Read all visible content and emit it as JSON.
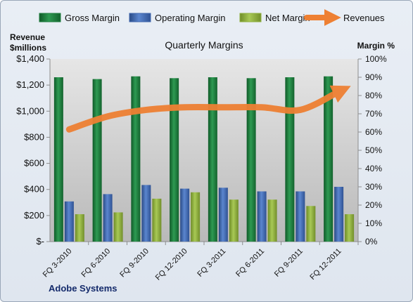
{
  "chart_data": {
    "type": "bar",
    "title": "Quarterly Margins",
    "company": "Adobe Systems",
    "left_axis_title": "Revenue $millions",
    "right_axis_title": "Margin %",
    "categories": [
      "FQ 3-2010",
      "FQ 6-2010",
      "FQ 9-2010",
      "FQ 12-2010",
      "FQ 3-2011",
      "FQ 6-2011",
      "FQ 9-2011",
      "FQ 12-2011"
    ],
    "series": [
      {
        "name": "Gross Margin",
        "axis": "right",
        "type": "bar",
        "color": "#1e7d3e",
        "values": [
          90,
          89,
          90.5,
          89.5,
          90,
          89.5,
          90,
          90.5
        ]
      },
      {
        "name": "Operating Margin",
        "axis": "right",
        "type": "bar",
        "color": "#3f66ad",
        "values": [
          22,
          26,
          31,
          29,
          29.5,
          27.5,
          27.5,
          30
        ]
      },
      {
        "name": "Net Margin",
        "axis": "right",
        "type": "bar",
        "color": "#8fb03e",
        "values": [
          15,
          16,
          23.5,
          27,
          23,
          23,
          19.5,
          15
        ]
      },
      {
        "name": "Revenues",
        "axis": "left",
        "type": "line",
        "color": "#ee8033",
        "values": [
          860,
          960,
          1010,
          1030,
          1030,
          1030,
          1010,
          1150
        ]
      }
    ],
    "left_axis": {
      "ylim": [
        0,
        1400
      ],
      "ticks": [
        "$-",
        "$200",
        "$400",
        "$600",
        "$800",
        "$1,000",
        "$1,200",
        "$1,400"
      ]
    },
    "right_axis": {
      "ylim": [
        0,
        100
      ],
      "ticks": [
        "0%",
        "10%",
        "20%",
        "30%",
        "40%",
        "50%",
        "60%",
        "70%",
        "80%",
        "90%",
        "100%"
      ]
    },
    "legend_position": "top",
    "grid": false
  }
}
